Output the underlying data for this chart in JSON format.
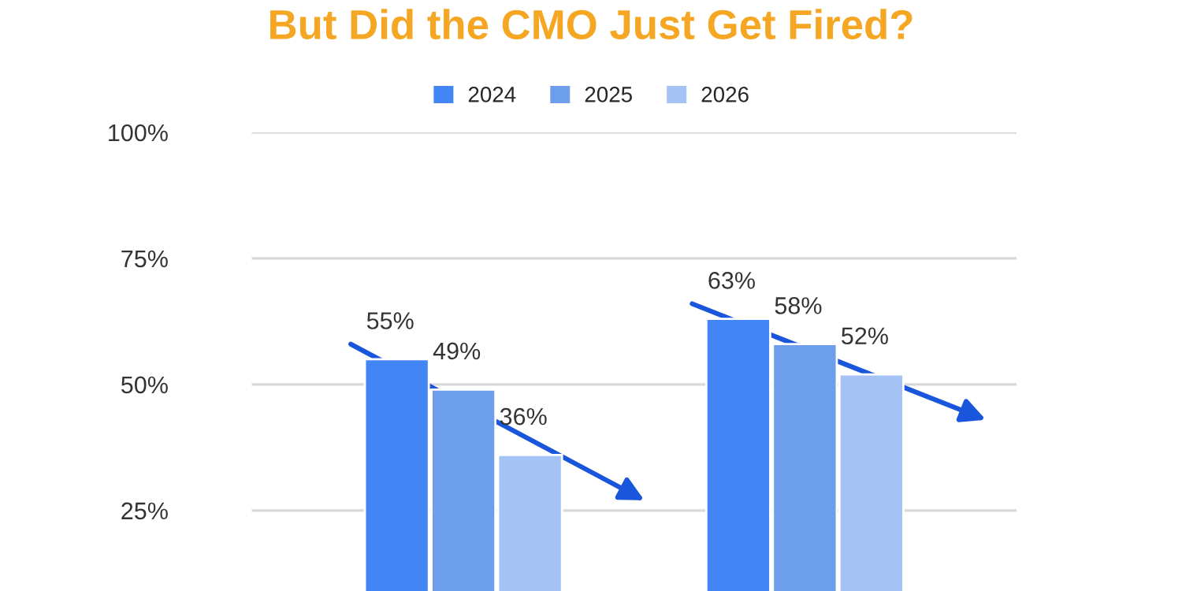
{
  "chart_data": {
    "type": "bar",
    "title": "But Did the CMO Just Get Fired?",
    "categories": [
      null,
      null
    ],
    "series": [
      {
        "name": "2024",
        "color": "#4285f4",
        "values": [
          55,
          63
        ],
        "value_labels": [
          "55%",
          "63%"
        ]
      },
      {
        "name": "2025",
        "color": "#6d9eeb",
        "values": [
          49,
          58
        ],
        "value_labels": [
          "49%",
          "58%"
        ]
      },
      {
        "name": "2026",
        "color": "#a4c2f4",
        "values": [
          36,
          52
        ],
        "value_labels": [
          "36%",
          "52%"
        ]
      }
    ],
    "ylim": [
      0,
      100
    ],
    "yticks": [
      {
        "value": 25,
        "label": "25%"
      },
      {
        "value": 50,
        "label": "50%"
      },
      {
        "value": 75,
        "label": "75%"
      },
      {
        "value": 100,
        "label": "100%"
      }
    ],
    "grid": "y",
    "legend": "top"
  }
}
